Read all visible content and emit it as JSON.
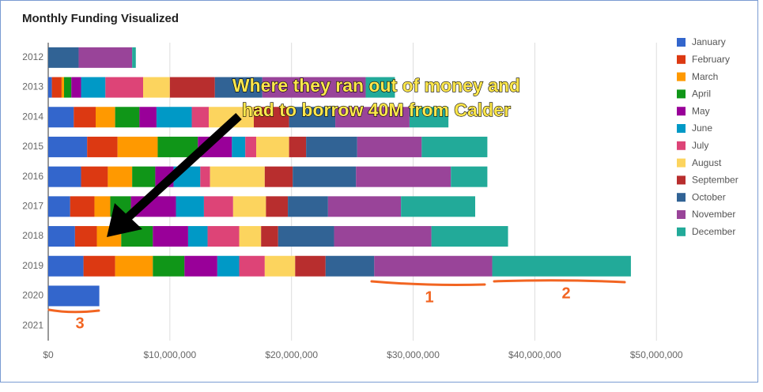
{
  "chart_data": {
    "type": "stacked-bar-horizontal",
    "title": "Monthly Funding Visualized",
    "categories": [
      "2012",
      "2013",
      "2014",
      "2015",
      "2016",
      "2017",
      "2018",
      "2019",
      "2020",
      "2021"
    ],
    "series": [
      {
        "name": "January",
        "color": "#3366cc",
        "values": [
          0,
          300000,
          2100000,
          3200000,
          2700000,
          1800000,
          2200000,
          2900000,
          4200000,
          0
        ]
      },
      {
        "name": "February",
        "color": "#dc3912",
        "values": [
          0,
          800000,
          1800000,
          2500000,
          2200000,
          2000000,
          1800000,
          2600000,
          0,
          0
        ]
      },
      {
        "name": "March",
        "color": "#ff9900",
        "values": [
          0,
          200000,
          1600000,
          3300000,
          2000000,
          1300000,
          2000000,
          3100000,
          0,
          0
        ]
      },
      {
        "name": "April",
        "color": "#109618",
        "values": [
          0,
          600000,
          2000000,
          3300000,
          1900000,
          1700000,
          2600000,
          2600000,
          0,
          0
        ]
      },
      {
        "name": "May",
        "color": "#990099",
        "values": [
          0,
          800000,
          1400000,
          2800000,
          1500000,
          3700000,
          2900000,
          2700000,
          0,
          0
        ]
      },
      {
        "name": "June",
        "color": "#0099c6",
        "values": [
          0,
          2000000,
          2900000,
          1100000,
          2200000,
          2300000,
          1600000,
          1800000,
          0,
          0
        ]
      },
      {
        "name": "July",
        "color": "#dd4477",
        "values": [
          0,
          3100000,
          1400000,
          900000,
          800000,
          2400000,
          2600000,
          2100000,
          0,
          0
        ]
      },
      {
        "name": "August",
        "color": "#fcd45e",
        "values": [
          0,
          2200000,
          3700000,
          2700000,
          4500000,
          2700000,
          1800000,
          2500000,
          0,
          0
        ]
      },
      {
        "name": "September",
        "color": "#b82e2e",
        "values": [
          0,
          3700000,
          2900000,
          1400000,
          2300000,
          1800000,
          1400000,
          2500000,
          0,
          0
        ]
      },
      {
        "name": "October",
        "color": "#316395",
        "values": [
          2500000,
          3900000,
          3800000,
          4200000,
          5200000,
          3300000,
          4600000,
          4000000,
          0,
          0
        ]
      },
      {
        "name": "November",
        "color": "#994499",
        "values": [
          4400000,
          8500000,
          6100000,
          5300000,
          7800000,
          6000000,
          8000000,
          9700000,
          0,
          0
        ]
      },
      {
        "name": "December",
        "color": "#22aa99",
        "values": [
          300000,
          2400000,
          3200000,
          5400000,
          3000000,
          6100000,
          6300000,
          11400000,
          0,
          0
        ]
      }
    ],
    "xlim": [
      0,
      52000000
    ],
    "xticks": [
      {
        "value": 0,
        "label": "$0"
      },
      {
        "value": 10000000,
        "label": "$10,000,000"
      },
      {
        "value": 20000000,
        "label": "$20,000,000"
      },
      {
        "value": 30000000,
        "label": "$30,000,000"
      },
      {
        "value": 40000000,
        "label": "$40,000,000"
      },
      {
        "value": 50000000,
        "label": "$50,000,000"
      }
    ],
    "grid": true,
    "legend": "right",
    "annotations": {
      "lines": [
        "Where they ran out of money and",
        "had to borrow 40M from Calder"
      ],
      "marks": [
        "1",
        "2",
        "3"
      ]
    }
  }
}
